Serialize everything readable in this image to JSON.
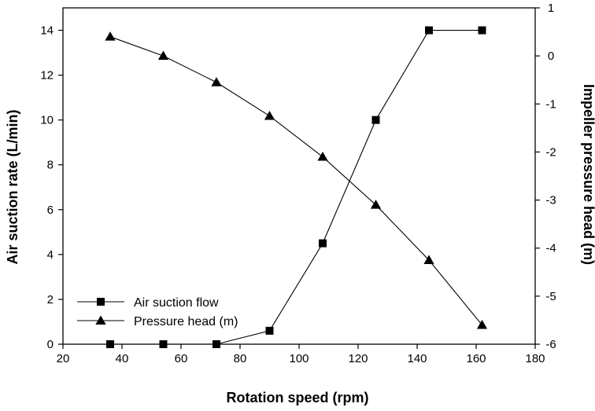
{
  "chart_data": {
    "type": "line",
    "xlabel": "Rotation speed (rpm)",
    "ylabel": "Air suction rate (L/min)",
    "y2label": "Impeller pressure head (m)",
    "xlim": [
      20,
      180
    ],
    "ylim": [
      0,
      15
    ],
    "y2lim": [
      -6,
      1
    ],
    "x_ticks": [
      20,
      40,
      60,
      80,
      100,
      120,
      140,
      160,
      180
    ],
    "y_ticks": [
      0,
      2,
      4,
      6,
      8,
      10,
      12,
      14
    ],
    "y2_ticks": [
      -6,
      -5,
      -4,
      -3,
      -2,
      -1,
      0,
      1
    ],
    "grid": false,
    "legend_position": "bottom-left",
    "series": [
      {
        "name": "Air suction flow",
        "axis": "left",
        "marker": "square",
        "x": [
          36,
          54,
          72,
          90,
          108,
          126,
          144,
          162
        ],
        "values": [
          0,
          0,
          0,
          0.6,
          4.5,
          10,
          14,
          14
        ]
      },
      {
        "name": "Pressure head (m)",
        "axis": "right",
        "marker": "triangle",
        "x": [
          36,
          54,
          72,
          90,
          108,
          126,
          144,
          162
        ],
        "values": [
          0.4,
          0.0,
          -0.55,
          -1.25,
          -2.1,
          -3.1,
          -4.25,
          -5.6
        ]
      }
    ],
    "colors": {
      "line": "#000000",
      "marker": "#000000"
    }
  }
}
